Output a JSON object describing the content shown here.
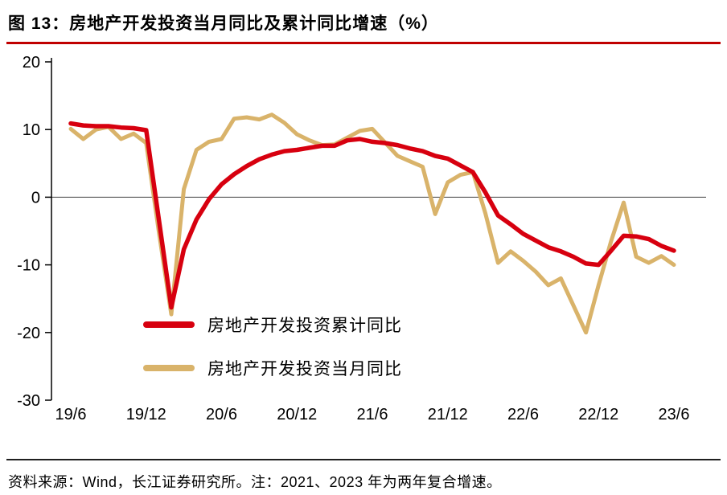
{
  "header": {
    "title": "图 13：房地产开发投资当月同比及累计同比增速（%）",
    "rule_color": "#c00000"
  },
  "footer": {
    "source_note": "资料来源：Wind，长江证券研究所。注：2021、2023 年为两年复合增速。"
  },
  "chart_data": {
    "type": "line",
    "title": "房地产开发投资当月同比及累计同比增速（%）",
    "xlabel": "",
    "ylabel": "",
    "x_start": "2019/6",
    "x_end": "2023/6",
    "x_step_months": 1,
    "xticks": [
      {
        "pos": 0,
        "label": "19/6"
      },
      {
        "pos": 6,
        "label": "19/12"
      },
      {
        "pos": 12,
        "label": "20/6"
      },
      {
        "pos": 18,
        "label": "20/12"
      },
      {
        "pos": 24,
        "label": "21/6"
      },
      {
        "pos": 30,
        "label": "21/12"
      },
      {
        "pos": 36,
        "label": "22/6"
      },
      {
        "pos": 42,
        "label": "22/12"
      },
      {
        "pos": 48,
        "label": "23/6"
      }
    ],
    "ylim": [
      -30,
      20
    ],
    "yticks": [
      20,
      10,
      0,
      -10,
      -20,
      -30
    ],
    "grid": "zero-line-only",
    "zero_line_color": "#404040",
    "axis_color": "#000000",
    "legend_position": "inside-lower-left",
    "series": [
      {
        "id": "cumulative",
        "name": "房地产开发投资累计同比",
        "color": "#d7000f",
        "width": 5.5,
        "values": [
          10.9,
          10.6,
          10.5,
          10.5,
          10.3,
          10.2,
          9.9,
          -3.2,
          -16.3,
          -7.7,
          -3.3,
          -0.3,
          1.9,
          3.4,
          4.6,
          5.6,
          6.3,
          6.8,
          7.0,
          7.3,
          7.6,
          7.6,
          8.4,
          8.6,
          8.2,
          8.0,
          7.7,
          7.2,
          6.8,
          6.1,
          5.7,
          4.7,
          3.7,
          0.7,
          -2.7,
          -4.0,
          -5.4,
          -6.4,
          -7.4,
          -8.0,
          -8.8,
          -9.8,
          -10.0,
          -7.9,
          -5.7,
          -5.8,
          -6.2,
          -7.2,
          -7.9
        ]
      },
      {
        "id": "monthly",
        "name": "房地产开发投资当月同比",
        "color": "#d9b36a",
        "width": 5,
        "values": [
          10.1,
          8.6,
          10.0,
          10.4,
          8.6,
          9.4,
          8.0,
          -5.0,
          -17.3,
          1.2,
          7.0,
          8.2,
          8.6,
          11.6,
          11.8,
          11.5,
          12.2,
          11.0,
          9.3,
          8.4,
          7.7,
          7.8,
          8.8,
          9.8,
          10.1,
          8.1,
          6.1,
          5.3,
          4.5,
          -2.5,
          2.2,
          3.3,
          3.7,
          -2.4,
          -9.7,
          -8.0,
          -9.4,
          -11.0,
          -13.0,
          -12.0,
          -16.0,
          -20.0,
          -13.0,
          -6.5,
          -0.8,
          -8.8,
          -9.7,
          -8.7,
          -10.0
        ]
      }
    ]
  }
}
